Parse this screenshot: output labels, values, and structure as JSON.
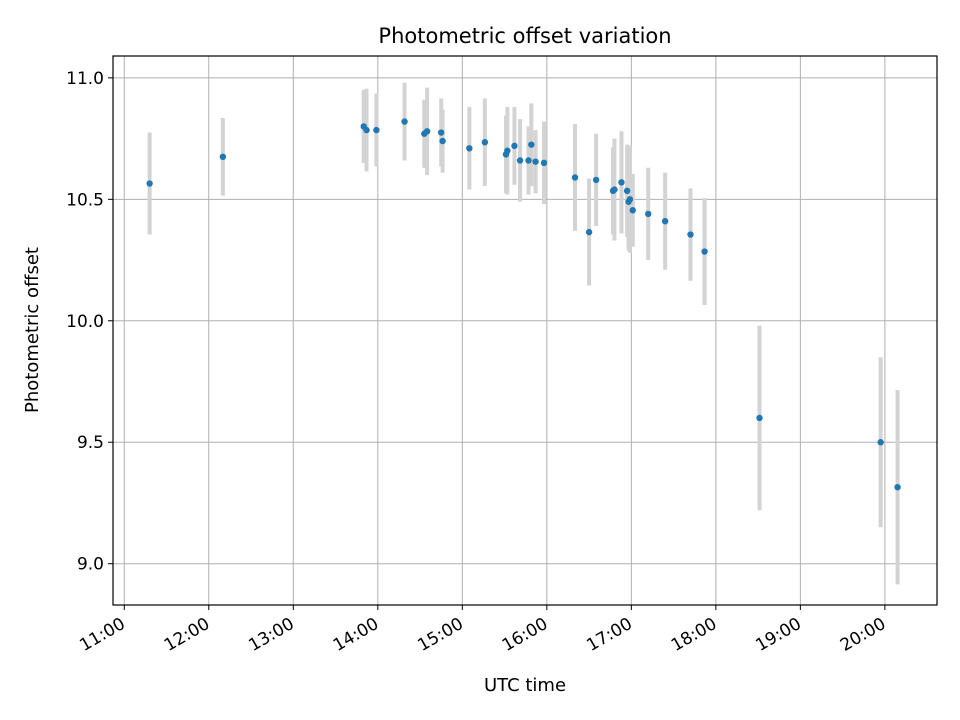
{
  "chart_data": {
    "type": "scatter",
    "title": "Photometric offset variation",
    "xlabel": "UTC time",
    "ylabel": "Photometric offset",
    "x_tick_labels": [
      "11:00",
      "12:00",
      "13:00",
      "14:00",
      "15:00",
      "16:00",
      "17:00",
      "18:00",
      "19:00",
      "20:00"
    ],
    "y_tick_labels": [
      "9.0",
      "9.5",
      "10.0",
      "10.5",
      "11.0"
    ],
    "xlim": [
      "10:52",
      "20:37"
    ],
    "ylim": [
      8.83,
      11.09
    ],
    "grid": true,
    "colors": {
      "points": "#1f77b4",
      "errorbars": "#d3d3d3",
      "grid": "#b0b0b0"
    },
    "series": [
      {
        "points": [
          {
            "t": "11:18",
            "y": 10.565,
            "err": 0.21
          },
          {
            "t": "12:10",
            "y": 10.675,
            "err": 0.16
          },
          {
            "t": "13:50",
            "y": 10.8,
            "err": 0.15
          },
          {
            "t": "13:52",
            "y": 10.785,
            "err": 0.17
          },
          {
            "t": "13:59",
            "y": 10.785,
            "err": 0.15
          },
          {
            "t": "14:19",
            "y": 10.82,
            "err": 0.16
          },
          {
            "t": "14:33",
            "y": 10.77,
            "err": 0.14
          },
          {
            "t": "14:35",
            "y": 10.78,
            "err": 0.18
          },
          {
            "t": "14:45",
            "y": 10.775,
            "err": 0.14
          },
          {
            "t": "14:46",
            "y": 10.74,
            "err": 0.13
          },
          {
            "t": "15:05",
            "y": 10.71,
            "err": 0.17
          },
          {
            "t": "15:16",
            "y": 10.735,
            "err": 0.18
          },
          {
            "t": "15:31",
            "y": 10.685,
            "err": 0.16
          },
          {
            "t": "15:32",
            "y": 10.7,
            "err": 0.18
          },
          {
            "t": "15:37",
            "y": 10.72,
            "err": 0.16
          },
          {
            "t": "15:41",
            "y": 10.66,
            "err": 0.17
          },
          {
            "t": "15:47",
            "y": 10.66,
            "err": 0.14
          },
          {
            "t": "15:49",
            "y": 10.725,
            "err": 0.17
          },
          {
            "t": "15:52",
            "y": 10.655,
            "err": 0.13
          },
          {
            "t": "15:58",
            "y": 10.65,
            "err": 0.17
          },
          {
            "t": "16:20",
            "y": 10.59,
            "err": 0.22
          },
          {
            "t": "16:30",
            "y": 10.365,
            "err": 0.22
          },
          {
            "t": "16:35",
            "y": 10.58,
            "err": 0.19
          },
          {
            "t": "16:47",
            "y": 10.535,
            "err": 0.18
          },
          {
            "t": "16:48",
            "y": 10.54,
            "err": 0.21
          },
          {
            "t": "16:53",
            "y": 10.57,
            "err": 0.21
          },
          {
            "t": "16:57",
            "y": 10.535,
            "err": 0.19
          },
          {
            "t": "16:58",
            "y": 10.49,
            "err": 0.2
          },
          {
            "t": "16:59",
            "y": 10.5,
            "err": 0.22
          },
          {
            "t": "17:01",
            "y": 10.455,
            "err": 0.15
          },
          {
            "t": "17:12",
            "y": 10.44,
            "err": 0.19
          },
          {
            "t": "17:24",
            "y": 10.41,
            "err": 0.2
          },
          {
            "t": "17:42",
            "y": 10.355,
            "err": 0.19
          },
          {
            "t": "17:52",
            "y": 10.285,
            "err": 0.22
          },
          {
            "t": "18:31",
            "y": 9.6,
            "err": 0.38
          },
          {
            "t": "19:57",
            "y": 9.5,
            "err": 0.35
          },
          {
            "t": "20:09",
            "y": 9.315,
            "err": 0.4
          }
        ]
      }
    ]
  }
}
